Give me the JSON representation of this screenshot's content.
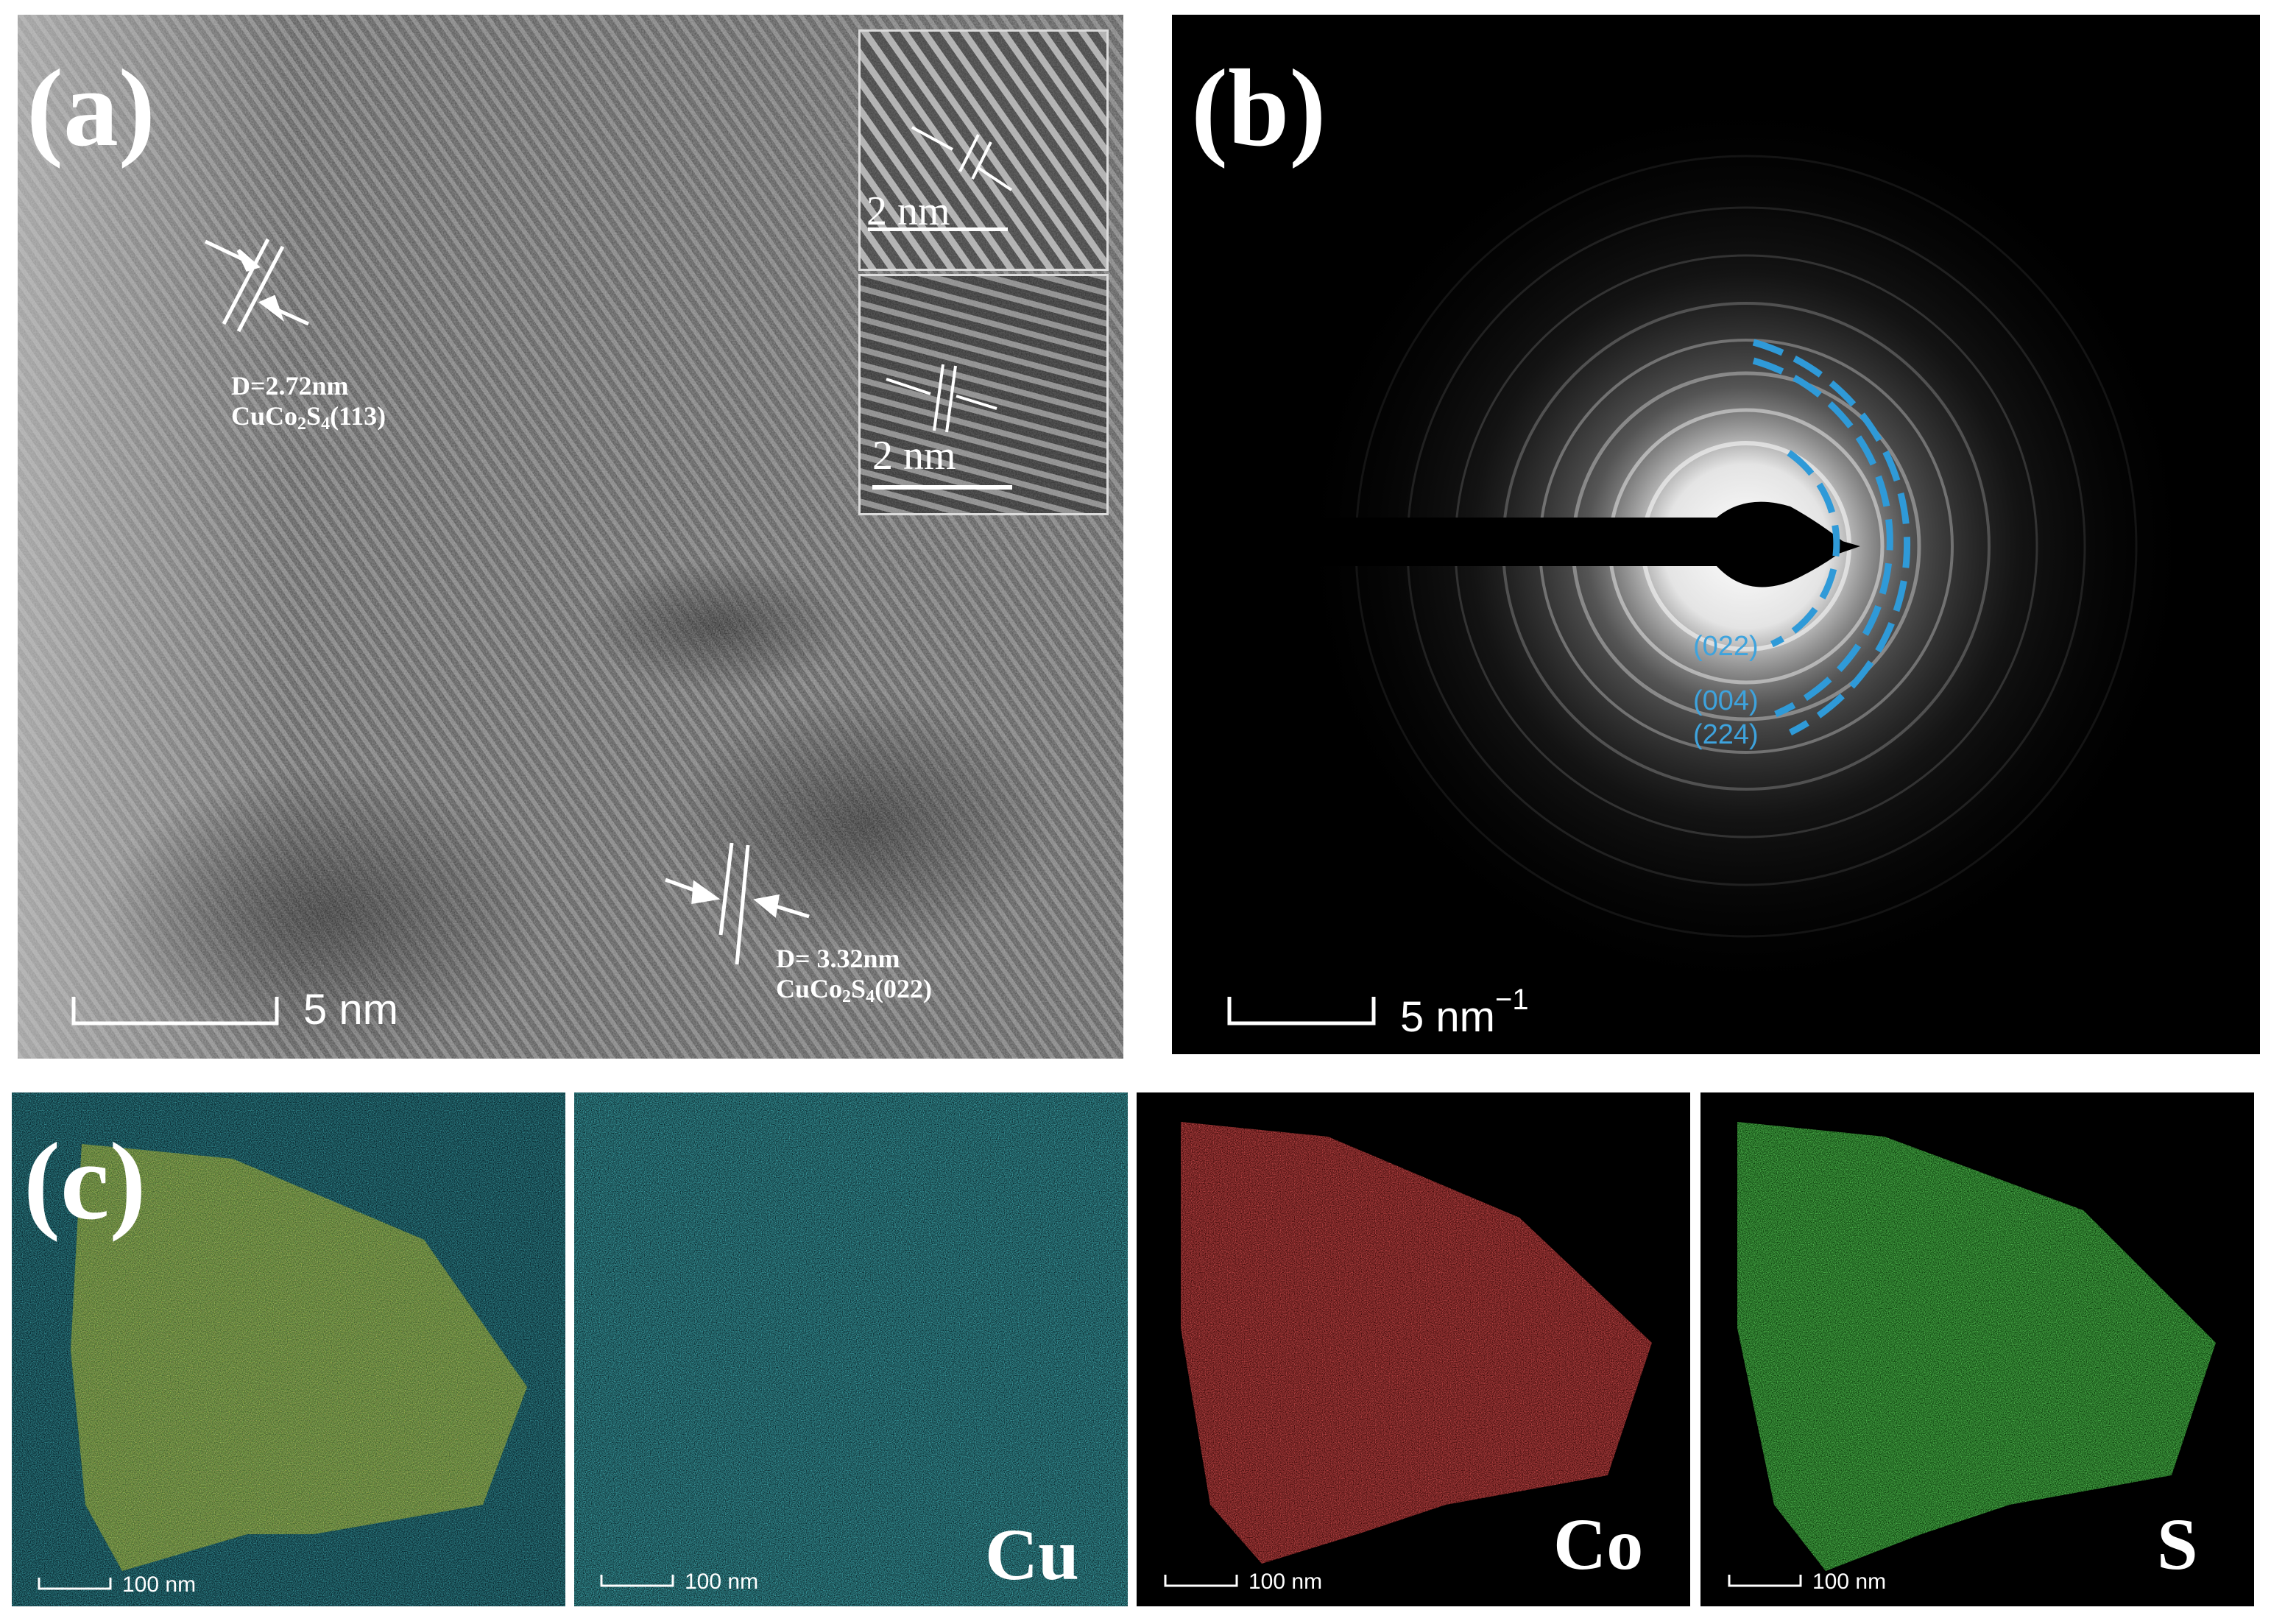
{
  "panel_a": {
    "label": "(a)",
    "lattice_1": {
      "spacing": "D=2.72nm",
      "phase": "CuCo",
      "sub1": "2",
      "mid": "S",
      "sub2": "4",
      "plane": "(113)"
    },
    "lattice_2": {
      "spacing": "D= 3.32nm",
      "phase": "CuCo",
      "sub1": "2",
      "mid": "S",
      "sub2": "4",
      "plane": "(022)"
    },
    "inset_1_scale": "2 nm",
    "inset_2_scale": "2 nm",
    "scale_bar": "5 nm"
  },
  "panel_b": {
    "label": "(b)",
    "rings": [
      "(022)",
      "(004)",
      "(224)"
    ],
    "ring_color": "#2f9ad8",
    "scale_bar": "5 nm",
    "scale_unit_exp": "−1"
  },
  "panel_c": {
    "label": "(c)",
    "maps": [
      {
        "element": "",
        "scale_bar": "100 nm",
        "color": "mixed"
      },
      {
        "element": "Cu",
        "scale_bar": "100 nm",
        "color": "#20b8c0"
      },
      {
        "element": "Co",
        "scale_bar": "100 nm",
        "color": "#e02020"
      },
      {
        "element": "S",
        "scale_bar": "100 nm",
        "color": "#2ed02e"
      }
    ]
  }
}
